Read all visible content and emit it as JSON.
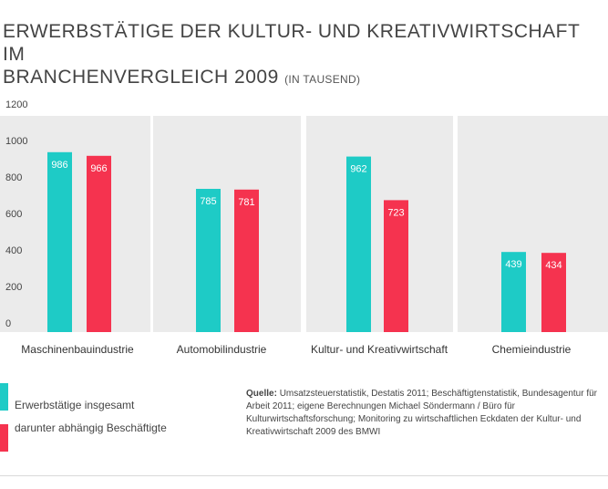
{
  "title": {
    "line1": "ERWERBSTÄTIGE DER KULTUR- UND KREATIVWIRTSCHAFT IM",
    "line2": "BRANCHENVERGLEICH 2009",
    "unit": "(IN TAUSEND)"
  },
  "chart_data": {
    "type": "bar",
    "categories": [
      "Maschinenbauindustrie",
      "Automobilindustrie",
      "Kultur- und Kreativwirtschaft",
      "Chemieindustrie"
    ],
    "series": [
      {
        "name": "Erwerbstätige insgesamt",
        "values": [
          986,
          785,
          962,
          439
        ],
        "color": "#1ecbc6"
      },
      {
        "name": "darunter abhängig Beschäftigte",
        "values": [
          966,
          781,
          723,
          434
        ],
        "color": "#f5334f"
      }
    ],
    "yticks": [
      0,
      200,
      400,
      600,
      800,
      1000,
      1200
    ],
    "ylim": [
      0,
      1200
    ],
    "grid": false,
    "legend_position": "bottom-left"
  },
  "legend": [
    {
      "label": "Erwerbstätige insgesamt",
      "color": "#1ecbc6"
    },
    {
      "label": "darunter abhängig Beschäftigte",
      "color": "#f5334f"
    }
  ],
  "source": {
    "label": "Quelle:",
    "text": "Umsatzsteuerstatistik, Destatis 2011; Beschäftigtenstatistik, Bundesagentur für Arbeit 2011; eigene Berechnungen Michael Söndermann / Büro für Kulturwirtschaftsforschung; Monitoring zu wirtschaftlichen Eckdaten der Kultur- und Kreativwirtschaft 2009 des BMWI"
  },
  "colors": {
    "panel": "#ebebeb",
    "teal": "#1ecbc6",
    "red": "#f5334f"
  }
}
